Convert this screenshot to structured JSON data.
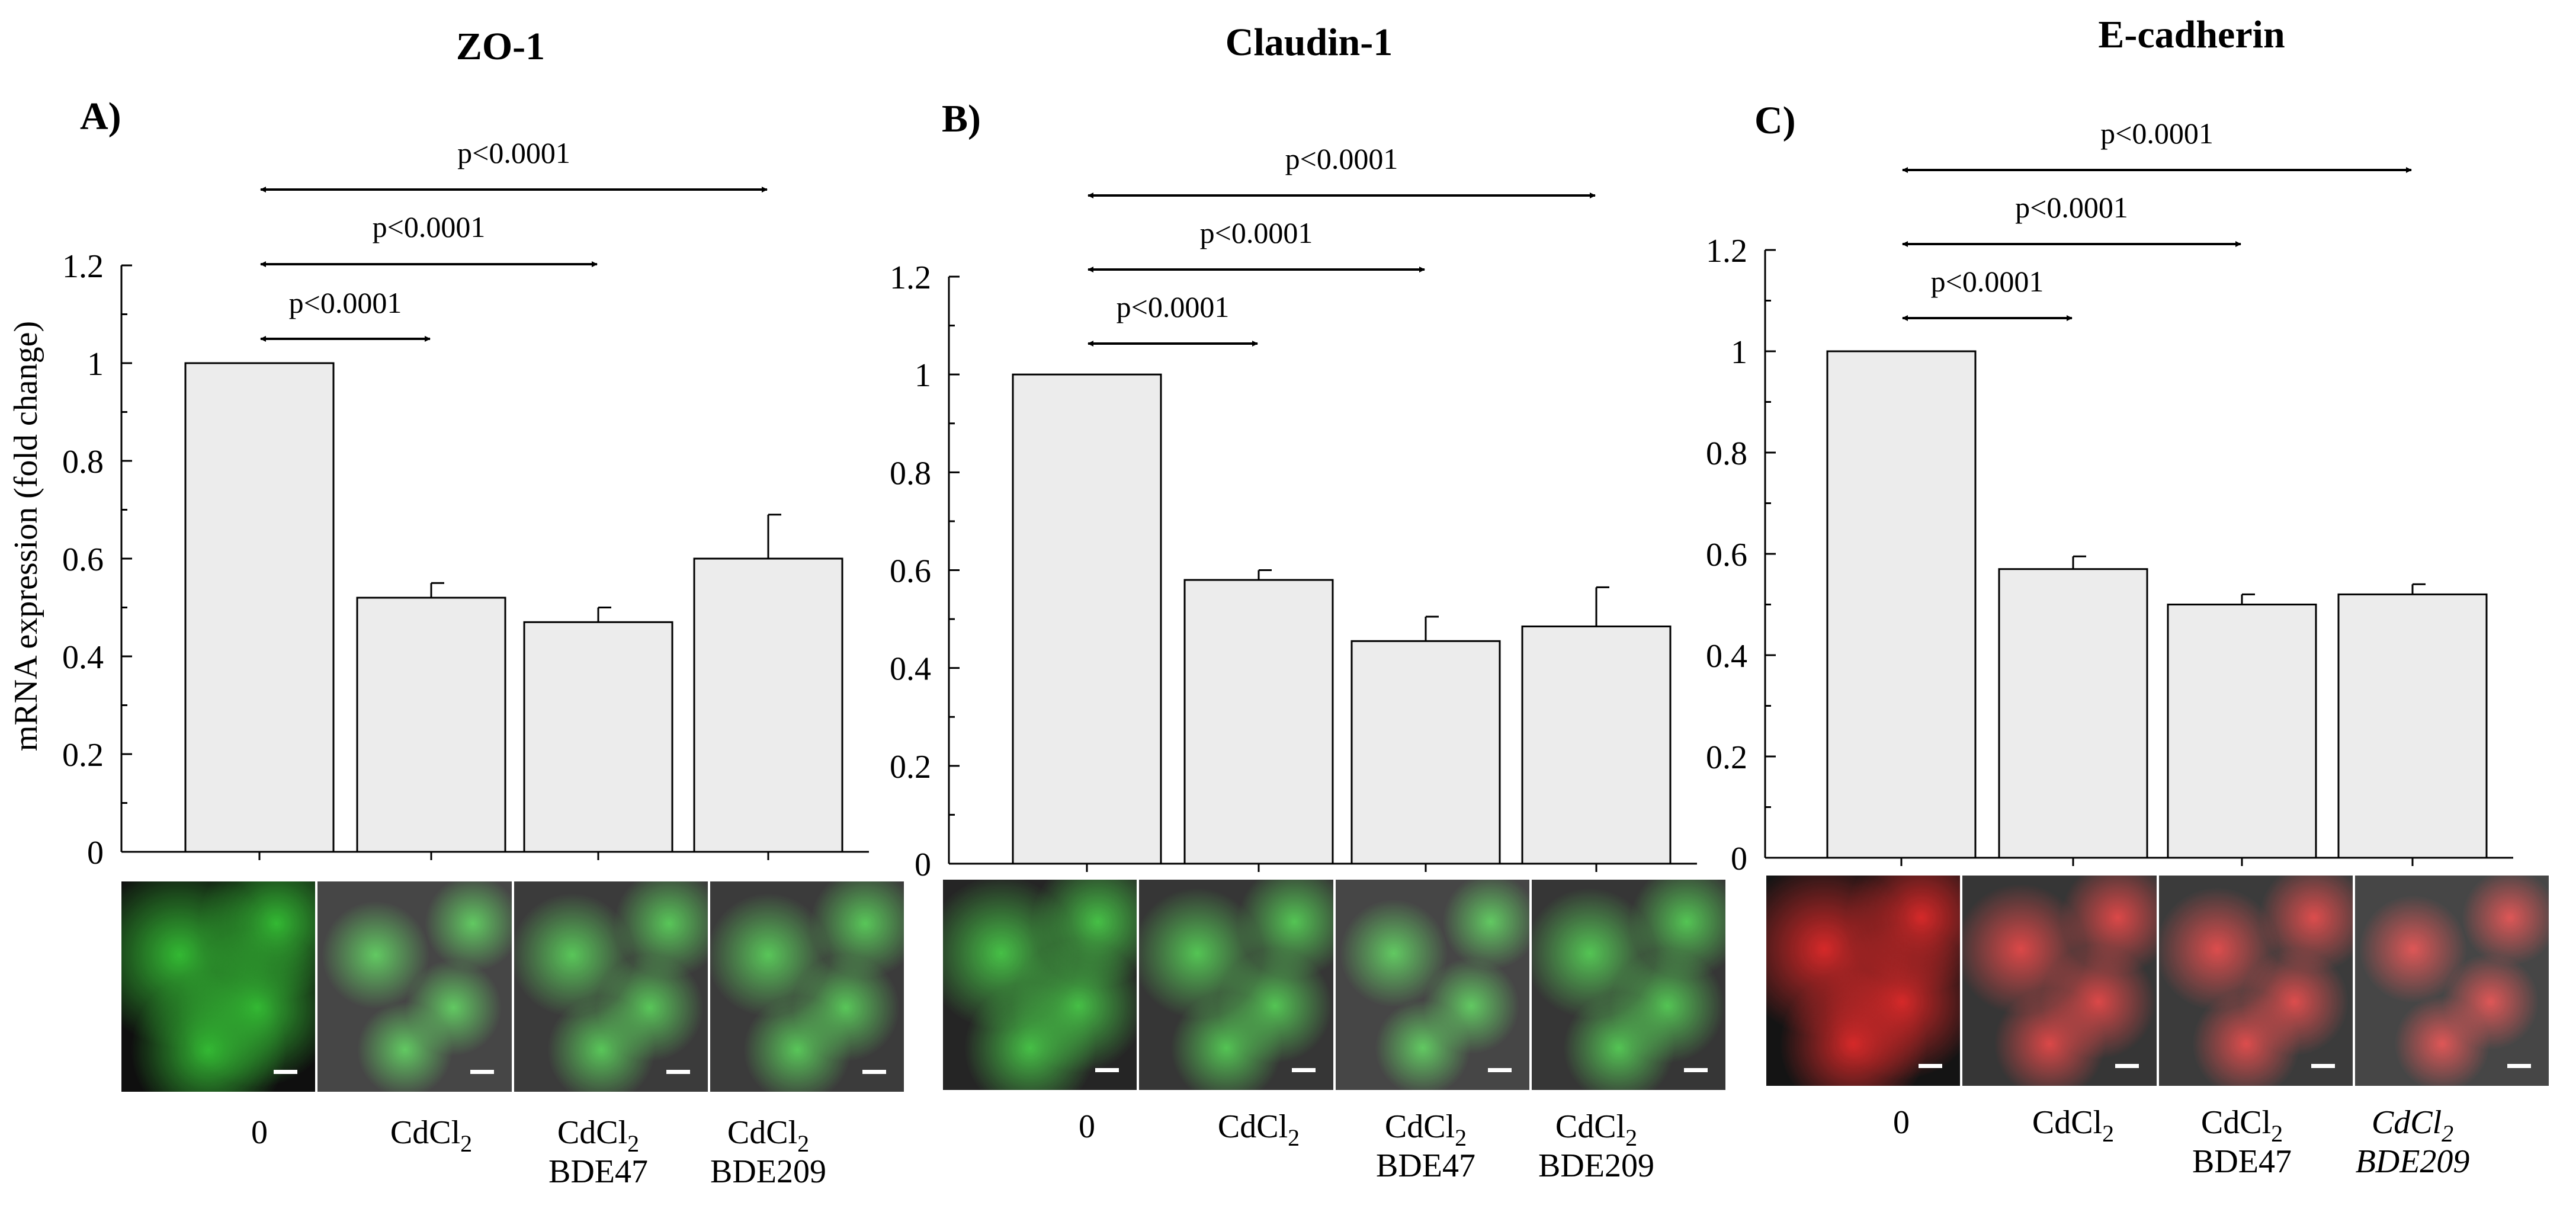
{
  "y_axis_label": "mRNA expression (fold change)",
  "categories": [
    "0",
    "CdCl2",
    "CdCl2 BDE47",
    "CdCl2 BDE209"
  ],
  "chart_data": [
    {
      "type": "bar",
      "panel_label": "A)",
      "title": "ZO-1",
      "categories": [
        "0",
        "CdCl2",
        "CdCl2 BDE47",
        "CdCl2 BDE209"
      ],
      "values": [
        1.0,
        0.52,
        0.47,
        0.6
      ],
      "errors": [
        0,
        0.03,
        0.03,
        0.09
      ],
      "ylabel": "mRNA expression (fold change)",
      "ylim": [
        0,
        1.2
      ],
      "yticks": [
        "0",
        "0.2",
        "0.4",
        "0.6",
        "0.8",
        "1",
        "1.2"
      ],
      "comparisons": [
        {
          "from": 0,
          "to": 1,
          "label": "p<0.0001"
        },
        {
          "from": 0,
          "to": 2,
          "label": "p<0.0001"
        },
        {
          "from": 0,
          "to": 3,
          "label": "p<0.0001"
        }
      ]
    },
    {
      "type": "bar",
      "panel_label": "B)",
      "title": "Claudin-1",
      "categories": [
        "0",
        "CdCl2",
        "CdCl2 BDE47",
        "CdCl2 BDE209"
      ],
      "values": [
        1.0,
        0.58,
        0.455,
        0.485
      ],
      "errors": [
        0,
        0.02,
        0.05,
        0.08
      ],
      "ylabel": "",
      "ylim": [
        0,
        1.2
      ],
      "yticks": [
        "0",
        "0.2",
        "0.4",
        "0.6",
        "0.8",
        "1",
        "1.2"
      ],
      "comparisons": [
        {
          "from": 0,
          "to": 1,
          "label": "p<0.0001"
        },
        {
          "from": 0,
          "to": 2,
          "label": "p<0.0001"
        },
        {
          "from": 0,
          "to": 3,
          "label": "p<0.0001"
        }
      ]
    },
    {
      "type": "bar",
      "panel_label": "C)",
      "title": "E-cadherin",
      "categories": [
        "0",
        "CdCl2",
        "CdCl2 BDE47",
        "CdCl2 BDE209"
      ],
      "values": [
        1.0,
        0.57,
        0.5,
        0.52
      ],
      "errors": [
        0,
        0.025,
        0.02,
        0.02
      ],
      "ylabel": "",
      "ylim": [
        0,
        1.2
      ],
      "yticks": [
        "0",
        "0.2",
        "0.4",
        "0.6",
        "0.8",
        "1",
        "1.2"
      ],
      "comparisons": [
        {
          "from": 0,
          "to": 1,
          "label": "p<0.0001"
        },
        {
          "from": 0,
          "to": 2,
          "label": "p<0.0001"
        },
        {
          "from": 0,
          "to": 3,
          "label": "p<0.0001"
        }
      ]
    }
  ],
  "micrographs": [
    {
      "stain_color": "#2fb82f",
      "intensity": [
        0.95,
        0.45,
        0.55,
        0.55
      ]
    },
    {
      "stain_color": "#2fb82f",
      "intensity": [
        0.75,
        0.6,
        0.45,
        0.6
      ]
    },
    {
      "stain_color": "#d42020",
      "intensity": [
        0.9,
        0.6,
        0.55,
        0.45
      ]
    }
  ],
  "colors": {
    "bar_fill": "#ececec",
    "bar_stroke": "#000000",
    "error_bar": "#000000"
  }
}
